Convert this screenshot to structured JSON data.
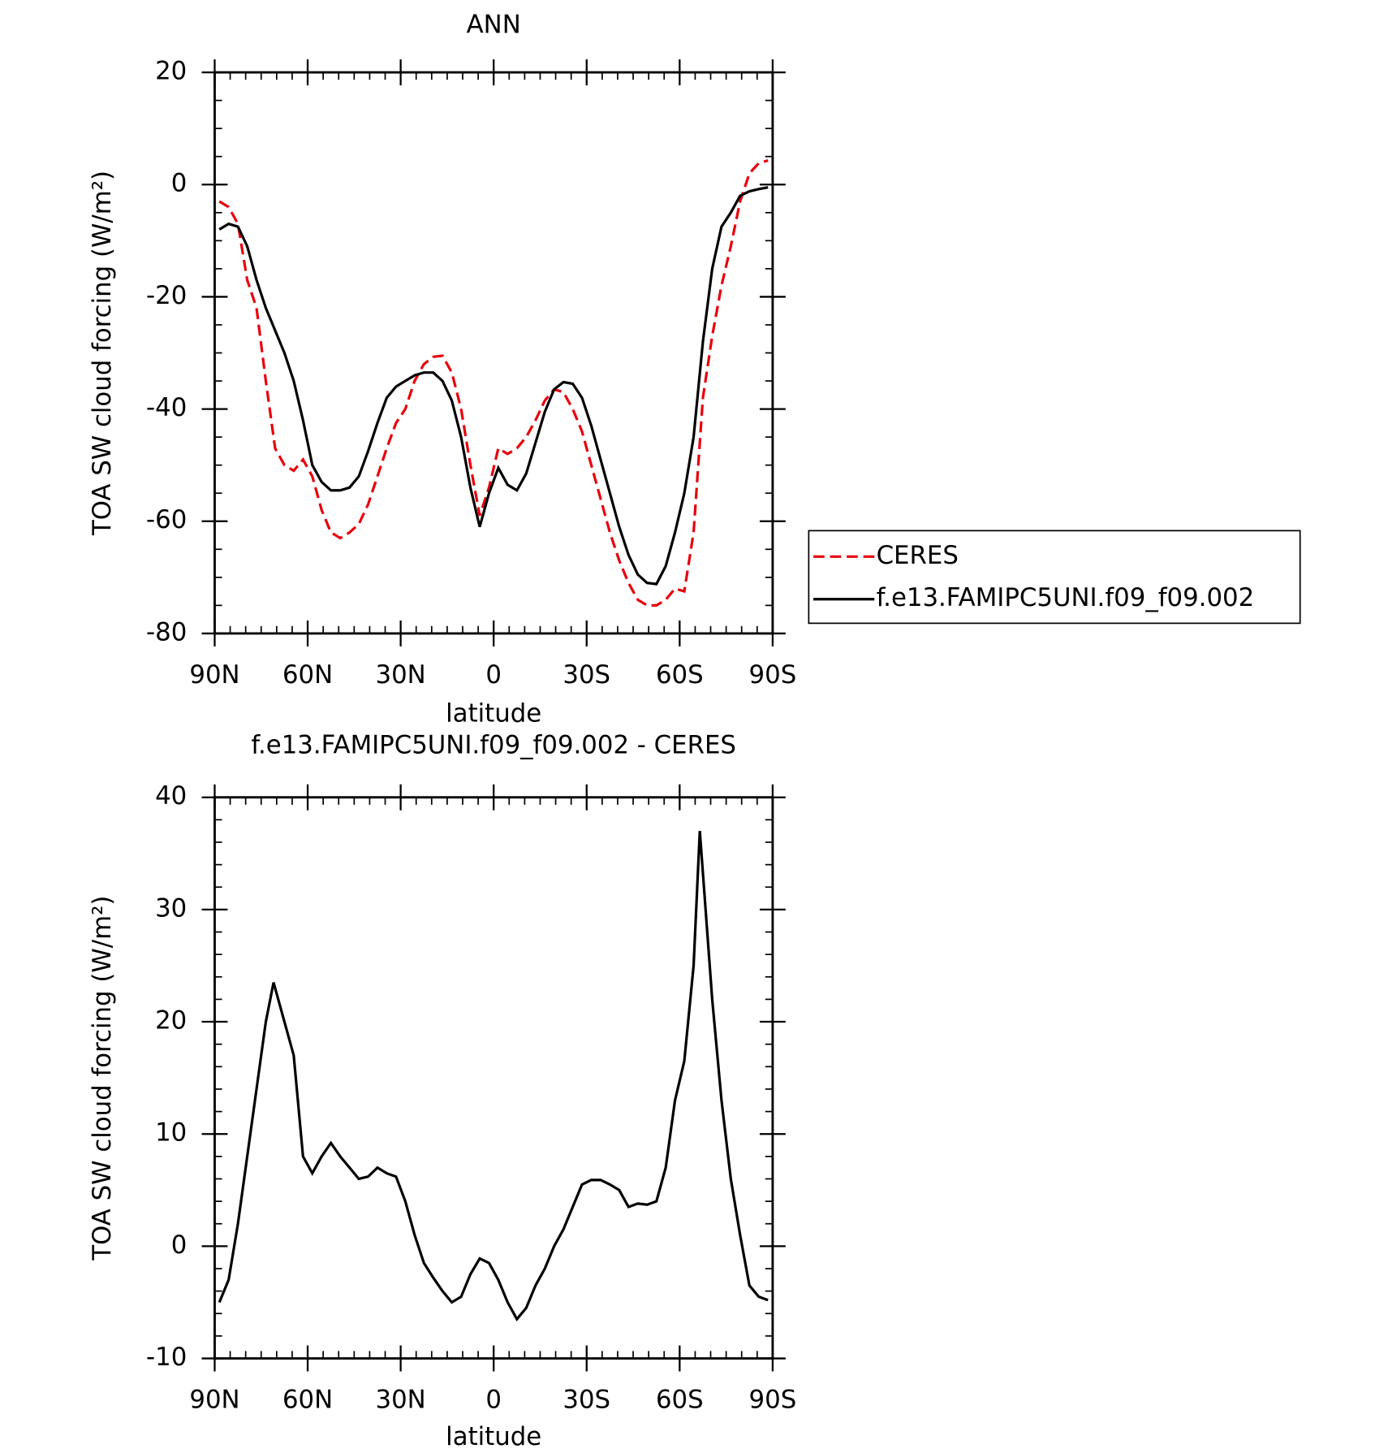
{
  "chart_data": [
    {
      "type": "line",
      "title": "ANN",
      "xlabel": "latitude",
      "ylabel": "TOA SW cloud forcing (W/m²)",
      "xlim": [
        90,
        -90
      ],
      "xticks": [
        {
          "value": 90,
          "label": "90N"
        },
        {
          "value": 60,
          "label": "60N"
        },
        {
          "value": 30,
          "label": "30N"
        },
        0,
        {
          "value": -30,
          "label": "30S"
        },
        {
          "value": -60,
          "label": "60S"
        },
        {
          "value": -90,
          "label": "90S"
        }
      ],
      "ylim": [
        -80,
        20
      ],
      "yticks": [
        -80,
        -60,
        -40,
        -20,
        0,
        20
      ],
      "legend": "right",
      "x": [
        88.5,
        85.5,
        82.5,
        79.5,
        76.5,
        73.5,
        70.5,
        67.5,
        64.5,
        61.5,
        58.5,
        55.5,
        52.5,
        49.5,
        46.5,
        43.5,
        40.5,
        37.5,
        34.5,
        31.5,
        28.5,
        25.5,
        22.5,
        19.5,
        16.5,
        13.5,
        10.5,
        7.5,
        4.5,
        1.5,
        -1.5,
        -4.5,
        -7.5,
        -10.5,
        -13.5,
        -16.5,
        -19.5,
        -22.5,
        -25.5,
        -28.5,
        -31.5,
        -34.5,
        -37.5,
        -40.5,
        -43.5,
        -46.5,
        -49.5,
        -52.5,
        -55.5,
        -58.5,
        -61.5,
        -64.5,
        -67.5,
        -70.5,
        -73.5,
        -76.5,
        -79.5,
        -82.5,
        -85.5,
        -88.5
      ],
      "series": [
        {
          "name": "CERES",
          "color": "#e8000b",
          "dash": true,
          "values": [
            -3,
            -4,
            -7,
            -17,
            -22,
            -35,
            -47,
            -50,
            -51,
            -49,
            -52,
            -58,
            -62,
            -63,
            -62,
            -60.5,
            -57,
            -52,
            -47,
            -42.5,
            -40,
            -35,
            -32,
            -30.7,
            -30.5,
            -33.5,
            -40,
            -50,
            -59,
            -54,
            -47,
            -48,
            -47,
            -45,
            -42,
            -38.5,
            -36.5,
            -37,
            -40,
            -44,
            -50,
            -56,
            -62,
            -67,
            -71,
            -74,
            -75,
            -75,
            -74,
            -72,
            -72.5,
            -62,
            -38,
            -27,
            -18,
            -11,
            -3,
            2,
            3.8,
            4.3
          ]
        },
        {
          "name": "f.e13.FAMIPC5UNI.f09_f09.002",
          "color": "#000000",
          "dash": false,
          "values": [
            -8,
            -7,
            -7.5,
            -11,
            -17,
            -22,
            -26,
            -30,
            -35,
            -42,
            -50,
            -53,
            -54.5,
            -54.5,
            -54,
            -52,
            -47.5,
            -42.5,
            -38,
            -36,
            -35,
            -34,
            -33.5,
            -33.5,
            -35,
            -38.5,
            -45,
            -54,
            -61,
            -55,
            -50.5,
            -53.5,
            -54.5,
            -51.5,
            -46,
            -40.5,
            -36.5,
            -35.2,
            -35.5,
            -38,
            -43,
            -49,
            -55,
            -61,
            -66,
            -69.5,
            -71,
            -71.2,
            -68,
            -62,
            -55,
            -45,
            -28,
            -15,
            -7.5,
            -5,
            -2,
            -1.2,
            -0.8,
            -0.5
          ]
        }
      ]
    },
    {
      "type": "line",
      "title": "f.e13.FAMIPC5UNI.f09_f09.002 - CERES",
      "xlabel": "latitude",
      "ylabel": "TOA SW cloud forcing (W/m²)",
      "xlim": [
        90,
        -90
      ],
      "xticks": [
        {
          "value": 90,
          "label": "90N"
        },
        {
          "value": 60,
          "label": "60N"
        },
        {
          "value": 30,
          "label": "30N"
        },
        0,
        {
          "value": -30,
          "label": "30S"
        },
        {
          "value": -60,
          "label": "60S"
        },
        {
          "value": -90,
          "label": "90S"
        }
      ],
      "ylim": [
        -10,
        40
      ],
      "yticks": [
        -10,
        0,
        10,
        20,
        30,
        40
      ],
      "x": [
        88.5,
        85.5,
        82.5,
        79.5,
        76.5,
        73.5,
        71,
        67.5,
        64.5,
        61.5,
        58.5,
        55.5,
        52.5,
        49.5,
        46.5,
        43.5,
        40.5,
        37.5,
        34.5,
        31.5,
        28.5,
        25.5,
        22.5,
        19.5,
        16.5,
        13.5,
        10.5,
        7.5,
        4.5,
        1.5,
        -1.5,
        -4.5,
        -7.5,
        -10.5,
        -13.5,
        -16.5,
        -19.5,
        -22.5,
        -25.5,
        -28.5,
        -31.5,
        -34.5,
        -37.5,
        -40.5,
        -43.5,
        -46.5,
        -49.5,
        -52.5,
        -55.5,
        -58.5,
        -61.5,
        -64.5,
        -66.5,
        -70.5,
        -73.5,
        -76.5,
        -79.5,
        -82.5,
        -85.5,
        -88.5
      ],
      "series": [
        {
          "name": "f.e13.FAMIPC5UNI.f09_f09.002 - CERES",
          "color": "#000000",
          "dash": false,
          "values": [
            -5,
            -3,
            2,
            8,
            14,
            20,
            23.5,
            20,
            17,
            8,
            6.5,
            8,
            9.2,
            8,
            7,
            6,
            6.2,
            7,
            6.5,
            6.2,
            4,
            1,
            -1.5,
            -2.8,
            -4,
            -5,
            -4.5,
            -2.5,
            -1.1,
            -1.5,
            -3,
            -5,
            -6.5,
            -5.5,
            -3.5,
            -2,
            0,
            1.5,
            3.5,
            5.5,
            5.9,
            5.9,
            5.5,
            5,
            3.5,
            3.8,
            3.7,
            4,
            7,
            13,
            16.5,
            25,
            37,
            22,
            13,
            6,
            1,
            -3.5,
            -4.5,
            -4.8
          ]
        }
      ]
    }
  ]
}
